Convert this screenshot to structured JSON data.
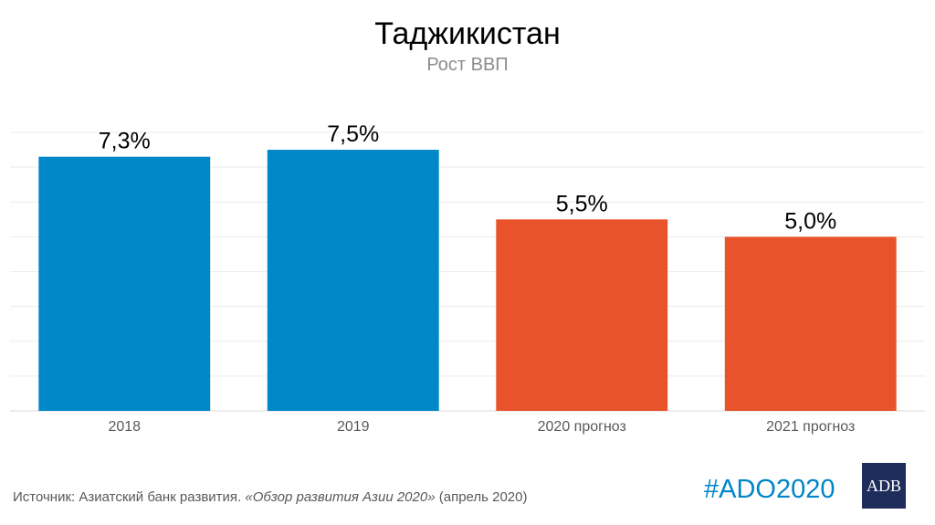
{
  "chart_data": {
    "type": "bar",
    "title": "Таджикистан",
    "subtitle": "Рост ВВП",
    "categories": [
      "2018",
      "2019",
      "2020 прогноз",
      "2021 прогноз"
    ],
    "values": [
      7.3,
      7.5,
      5.5,
      5.0
    ],
    "data_labels": [
      "7,3%",
      "7,5%",
      "5,5%",
      "5,0%"
    ],
    "colors": [
      "#0087c8",
      "#0087c8",
      "#e8532b",
      "#e8532b"
    ],
    "ylim": [
      0,
      8
    ],
    "grid": true,
    "xlabel": "",
    "ylabel": ""
  },
  "footer": {
    "source_prefix": "Источник: Азиатский банк развития. ",
    "source_title": "«Обзор развития Азии 2020»",
    "source_suffix": " (апрель 2020)",
    "hashtag": "#ADO2020",
    "logo": "ADB"
  }
}
